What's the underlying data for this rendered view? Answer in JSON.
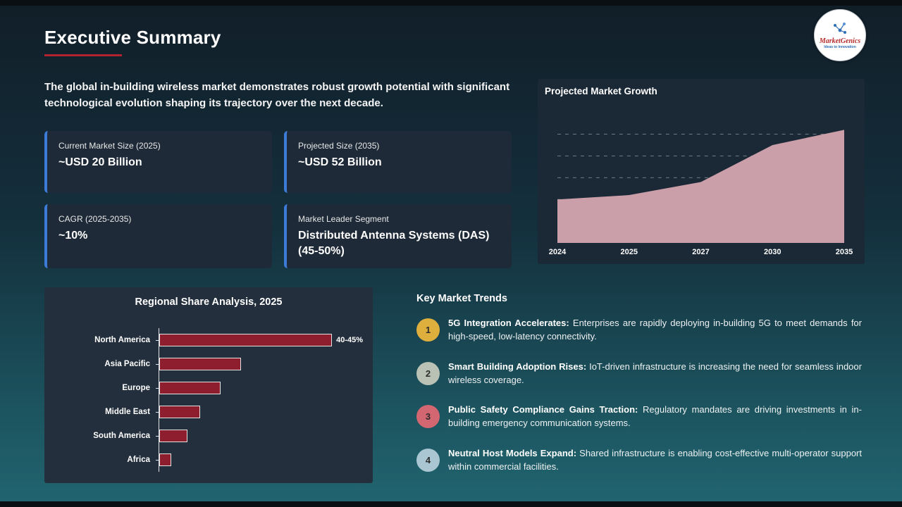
{
  "page": {
    "title": "Executive Summary",
    "intro": "The global in-building wireless market demonstrates robust growth potential with significant technological evolution shaping its trajectory over the next decade."
  },
  "logo": {
    "name": "MarketGenics",
    "tagline": "Ideas to Innovation"
  },
  "theme": {
    "accent_blue": "#3d7bd8",
    "underline_red": "#b3232e",
    "area_fill": "#cb9fa9",
    "bar_fill": "#8e1e2d"
  },
  "stat_cards": [
    {
      "label": "Current Market Size (2025)",
      "value": "~USD 20 Billion"
    },
    {
      "label": "Projected Size (2035)",
      "value": "~USD 52 Billion"
    },
    {
      "label": "CAGR (2025-2035)",
      "value": "~10%"
    },
    {
      "label": "Market Leader Segment",
      "value": "Distributed Antenna Systems (DAS) (45-50%)"
    }
  ],
  "chart_data": [
    {
      "type": "area",
      "title": "Projected Market Growth",
      "x": [
        "2024",
        "2025",
        "2027",
        "2030",
        "2035"
      ],
      "values": [
        20,
        22,
        28,
        45,
        52
      ],
      "ylim": [
        0,
        56
      ],
      "gridlines": [
        10,
        20,
        30,
        40,
        50
      ],
      "grid_style": "dashed",
      "fill_color": "#cb9fa9",
      "legend": "none"
    },
    {
      "type": "bar",
      "orientation": "horizontal",
      "title": "Regional Share Analysis, 2025",
      "categories": [
        "North America",
        "Asia Pacific",
        "Europe",
        "Middle East",
        "South America",
        "Africa"
      ],
      "values": [
        42.5,
        20,
        15,
        10,
        7,
        3
      ],
      "xlim": [
        0,
        50
      ],
      "bar_color": "#8e1e2d",
      "annotations": [
        {
          "category": "North America",
          "label": "40-45%"
        }
      ]
    }
  ],
  "trends": {
    "title": "Key Market Trends",
    "items": [
      {
        "number": "1",
        "badge_color": "#dfaf3e",
        "bold": "5G Integration Accelerates:",
        "text": "Enterprises are rapidly deploying in-building 5G to meet demands for high-speed, low-latency connectivity."
      },
      {
        "number": "2",
        "badge_color": "#b9c2b4",
        "bold": "Smart Building Adoption Rises:",
        "text": "IoT-driven infrastructure is increasing the need for seamless indoor wireless coverage."
      },
      {
        "number": "3",
        "badge_color": "#d26671",
        "bold": "Public Safety Compliance Gains Traction:",
        "text": "Regulatory mandates are driving investments in in-building emergency communication systems."
      },
      {
        "number": "4",
        "badge_color": "#a9c6d2",
        "bold": "Neutral Host Models Expand:",
        "text": "Shared infrastructure is enabling cost-effective multi-operator support within commercial facilities."
      }
    ]
  }
}
